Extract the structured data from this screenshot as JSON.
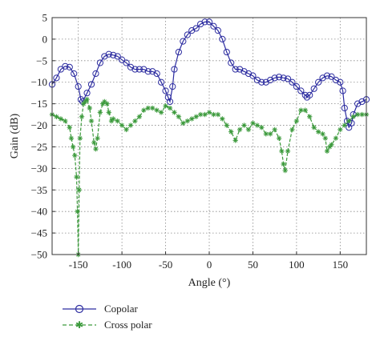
{
  "chart_data": {
    "type": "line",
    "xlabel": "Angle (°)",
    "ylabel": "Gain (dB)",
    "xlim": [
      -180,
      180
    ],
    "ylim": [
      -50,
      5
    ],
    "xticks": [
      -150,
      -100,
      -50,
      0,
      50,
      100,
      150
    ],
    "yticks": [
      5,
      0,
      -5,
      -10,
      -15,
      -20,
      -25,
      -30,
      -35,
      -40,
      -45,
      -50
    ],
    "grid": true,
    "legend": "bottom-left",
    "series": [
      {
        "name": "Copolar",
        "color": "#2c2ca0",
        "marker": "circle",
        "line": "solid",
        "x": [
          -180,
          -175,
          -170,
          -165,
          -160,
          -155,
          -150,
          -147,
          -145,
          -140,
          -135,
          -130,
          -125,
          -120,
          -115,
          -110,
          -105,
          -100,
          -95,
          -90,
          -85,
          -80,
          -75,
          -70,
          -65,
          -60,
          -55,
          -50,
          -47,
          -45,
          -42,
          -40,
          -35,
          -30,
          -25,
          -20,
          -15,
          -10,
          -5,
          0,
          5,
          10,
          15,
          20,
          25,
          30,
          35,
          40,
          45,
          50,
          55,
          60,
          65,
          70,
          75,
          80,
          85,
          90,
          95,
          100,
          105,
          110,
          112,
          115,
          120,
          125,
          130,
          135,
          140,
          145,
          150,
          153,
          155,
          158,
          160,
          163,
          165,
          170,
          175,
          180
        ],
        "y": [
          -10.5,
          -9,
          -7,
          -6.3,
          -6.5,
          -8,
          -11,
          -14,
          -14.5,
          -12.5,
          -10.5,
          -8,
          -5.5,
          -4,
          -3.5,
          -3.7,
          -4,
          -4.8,
          -5.5,
          -6.5,
          -7,
          -7,
          -7,
          -7.5,
          -7.5,
          -8,
          -10,
          -12,
          -13.5,
          -14.5,
          -11,
          -7,
          -3,
          -0.5,
          1,
          2,
          2.5,
          3.5,
          4,
          4,
          3,
          2,
          0,
          -3,
          -5.5,
          -7,
          -7,
          -7.5,
          -8,
          -8.5,
          -9.5,
          -10,
          -10,
          -9.5,
          -9,
          -8.8,
          -9,
          -9.2,
          -10,
          -11,
          -12,
          -13,
          -13.5,
          -13,
          -11.5,
          -10,
          -9,
          -8.5,
          -8.7,
          -9.5,
          -10,
          -12,
          -16,
          -19,
          -20.5,
          -19.5,
          -17.5,
          -15,
          -14.5,
          -14
        ]
      },
      {
        "name": "Cross polar",
        "color": "#3c9a3c",
        "marker": "star",
        "line": "dashed",
        "x": [
          -180,
          -175,
          -170,
          -165,
          -160,
          -158,
          -156,
          -154,
          -152,
          -151,
          -150,
          -149,
          -148,
          -146,
          -144,
          -142,
          -140,
          -137,
          -135,
          -132,
          -130,
          -128,
          -125,
          -122,
          -120,
          -117,
          -115,
          -112,
          -110,
          -105,
          -100,
          -95,
          -90,
          -85,
          -80,
          -75,
          -70,
          -65,
          -60,
          -55,
          -50,
          -45,
          -40,
          -35,
          -30,
          -25,
          -20,
          -15,
          -10,
          -5,
          0,
          5,
          10,
          15,
          20,
          25,
          30,
          35,
          40,
          45,
          50,
          55,
          60,
          65,
          70,
          75,
          80,
          83,
          85,
          87,
          90,
          95,
          100,
          105,
          110,
          115,
          120,
          125,
          130,
          133,
          135,
          138,
          140,
          145,
          150,
          155,
          160,
          165,
          170,
          175,
          180
        ],
        "y": [
          -17.5,
          -18,
          -18.5,
          -19,
          -20.5,
          -23,
          -25,
          -27,
          -32,
          -40,
          -50,
          -35,
          -23,
          -18,
          -15,
          -14.5,
          -14,
          -16,
          -19,
          -24,
          -25.5,
          -23,
          -17,
          -15,
          -14.5,
          -15,
          -17,
          -19,
          -18.5,
          -19,
          -20,
          -21,
          -20,
          -19,
          -18,
          -16.5,
          -16,
          -16,
          -16.5,
          -17,
          -15.5,
          -16,
          -17,
          -18,
          -19.5,
          -19,
          -18.5,
          -18,
          -17.5,
          -17.5,
          -17,
          -17.5,
          -17.5,
          -18.5,
          -20,
          -21.5,
          -23.5,
          -21,
          -20,
          -21,
          -19.5,
          -20,
          -20.5,
          -22,
          -22,
          -21,
          -23,
          -26,
          -29,
          -30.5,
          -26,
          -21,
          -19,
          -16.5,
          -16.5,
          -18,
          -20.5,
          -21.5,
          -22,
          -23,
          -26,
          -25,
          -24.5,
          -23,
          -21,
          -20,
          -19,
          -18,
          -17.5,
          -17.5,
          -17.5
        ]
      }
    ]
  }
}
